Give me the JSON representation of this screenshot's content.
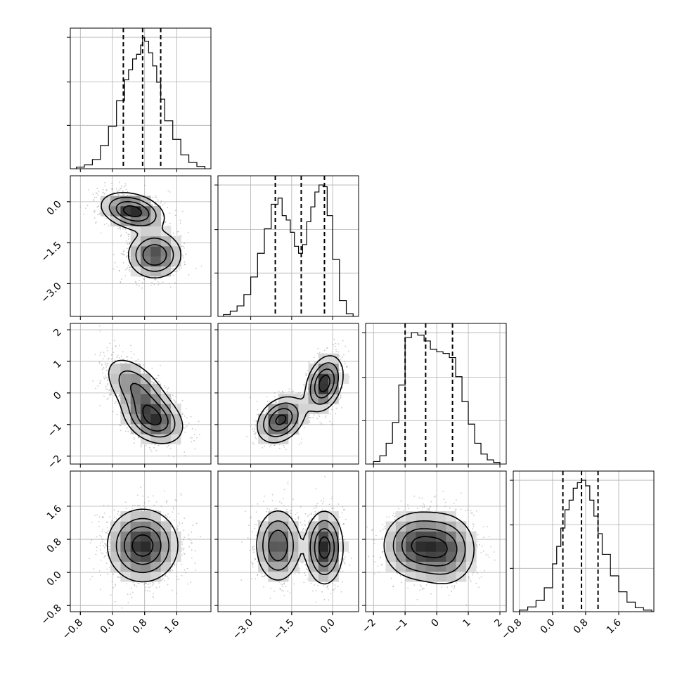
{
  "colors": {
    "ink": "#000000",
    "grid": "#b0b0b0",
    "scatter": "#8a8a8a",
    "background": "#ffffff"
  },
  "chart_data": {
    "type": "corner",
    "title": "",
    "grid": true,
    "parameters": [
      {
        "ticks": [
          -0.8,
          0.0,
          0.8,
          1.6
        ],
        "tick_labels": [
          "−0.8",
          "0.0",
          "0.8",
          "1.6"
        ],
        "range": [
          -1.05,
          2.45
        ]
      },
      {
        "ticks": [
          -3.0,
          -1.5,
          0.0
        ],
        "tick_labels": [
          "−3.0",
          "−1.5",
          "0.0"
        ],
        "range": [
          -4.2,
          0.95
        ]
      },
      {
        "ticks": [
          -2,
          -1,
          0,
          1,
          2
        ],
        "tick_labels": [
          "−2",
          "−1",
          "0",
          "1",
          "2"
        ],
        "range": [
          -2.25,
          2.2
        ]
      },
      {
        "ticks": [
          -0.8,
          0.0,
          0.8,
          1.6
        ],
        "tick_labels": [
          "−0.8",
          "0.0",
          "0.8",
          "1.6"
        ],
        "range": [
          -0.95,
          2.45
        ]
      }
    ],
    "histograms": [
      {
        "param": 0,
        "quantiles": [
          0.27,
          0.75,
          1.2
        ],
        "bin_edges": [
          -0.9,
          -0.7,
          -0.5,
          -0.3,
          -0.1,
          0.1,
          0.3,
          0.4,
          0.5,
          0.6,
          0.7,
          0.75,
          0.8,
          0.9,
          1.0,
          1.1,
          1.2,
          1.3,
          1.5,
          1.7,
          1.9,
          2.1,
          2.3
        ],
        "counts": [
          2,
          5,
          12,
          30,
          55,
          88,
          115,
          128,
          142,
          148,
          160,
          170,
          165,
          150,
          133,
          112,
          90,
          62,
          38,
          18,
          8,
          3
        ]
      },
      {
        "param": 1,
        "quantiles": [
          -2.1,
          -1.15,
          -0.3
        ],
        "bin_edges": [
          -4.0,
          -3.75,
          -3.5,
          -3.25,
          -3.0,
          -2.75,
          -2.5,
          -2.25,
          -2.0,
          -1.85,
          -1.7,
          -1.55,
          -1.4,
          -1.25,
          -1.1,
          -0.95,
          -0.8,
          -0.65,
          -0.5,
          -0.35,
          -0.2,
          0.0,
          0.25,
          0.5,
          0.75
        ],
        "counts": [
          2,
          6,
          12,
          25,
          45,
          72,
          100,
          128,
          135,
          115,
          110,
          96,
          80,
          72,
          82,
          108,
          125,
          142,
          150,
          148,
          115,
          65,
          18,
          3
        ]
      },
      {
        "param": 2,
        "quantiles": [
          -1.0,
          -0.35,
          0.5
        ],
        "bin_edges": [
          -2.0,
          -1.8,
          -1.6,
          -1.4,
          -1.2,
          -1.0,
          -0.8,
          -0.6,
          -0.4,
          -0.2,
          0.0,
          0.2,
          0.4,
          0.6,
          0.8,
          1.0,
          1.2,
          1.4,
          1.6,
          1.8,
          2.0
        ],
        "counts": [
          3,
          10,
          25,
          50,
          95,
          152,
          158,
          155,
          148,
          138,
          135,
          133,
          128,
          105,
          75,
          48,
          25,
          12,
          5,
          2
        ]
      },
      {
        "param": 3,
        "quantiles": [
          0.25,
          0.7,
          1.1
        ],
        "bin_edges": [
          -0.8,
          -0.6,
          -0.4,
          -0.2,
          0.0,
          0.1,
          0.2,
          0.3,
          0.4,
          0.5,
          0.6,
          0.7,
          0.8,
          0.9,
          1.0,
          1.1,
          1.2,
          1.4,
          1.6,
          1.8,
          2.0,
          2.2,
          2.4
        ],
        "counts": [
          2,
          6,
          14,
          30,
          60,
          82,
          105,
          128,
          140,
          155,
          162,
          165,
          158,
          140,
          120,
          98,
          72,
          45,
          25,
          12,
          5,
          2
        ]
      }
    ],
    "joint_panels": [
      {
        "x_param": 0,
        "y_param": 1,
        "modes": [
          {
            "x": 0.5,
            "y": -0.35,
            "sx": 0.4,
            "sy": 0.35,
            "rho": -0.3,
            "w": 0.5
          },
          {
            "x": 1.05,
            "y": -1.95,
            "sx": 0.35,
            "sy": 0.45,
            "rho": 0.0,
            "w": 0.5
          }
        ]
      },
      {
        "x_param": 0,
        "y_param": 2,
        "modes": [
          {
            "x": 0.62,
            "y": 0.1,
            "sx": 0.42,
            "sy": 0.55,
            "rho": -0.55,
            "w": 0.5
          },
          {
            "x": 1.02,
            "y": -0.85,
            "sx": 0.38,
            "sy": 0.4,
            "rho": -0.3,
            "w": 0.5
          }
        ]
      },
      {
        "x_param": 1,
        "y_param": 2,
        "modes": [
          {
            "x": -1.9,
            "y": -0.85,
            "sx": 0.45,
            "sy": 0.38,
            "rho": 0.3,
            "w": 0.5
          },
          {
            "x": -0.3,
            "y": 0.3,
            "sx": 0.35,
            "sy": 0.45,
            "rho": 0.3,
            "w": 0.5
          }
        ]
      },
      {
        "x_param": 0,
        "y_param": 3,
        "modes": [
          {
            "x": 0.75,
            "y": 0.65,
            "sx": 0.45,
            "sy": 0.45,
            "rho": 0.0,
            "w": 1.0
          }
        ]
      },
      {
        "x_param": 1,
        "y_param": 3,
        "modes": [
          {
            "x": -2.0,
            "y": 0.65,
            "sx": 0.42,
            "sy": 0.45,
            "rho": 0.0,
            "w": 0.5
          },
          {
            "x": -0.3,
            "y": 0.6,
            "sx": 0.35,
            "sy": 0.45,
            "rho": 0.0,
            "w": 0.5
          }
        ]
      },
      {
        "x_param": 2,
        "y_param": 3,
        "modes": [
          {
            "x": -0.65,
            "y": 0.65,
            "sx": 0.55,
            "sy": 0.42,
            "rho": 0.0,
            "w": 0.55
          },
          {
            "x": 0.3,
            "y": 0.55,
            "sx": 0.5,
            "sy": 0.45,
            "rho": 0.0,
            "w": 0.45
          }
        ]
      }
    ],
    "contour_levels": [
      0.15,
      0.35,
      0.6,
      0.85
    ]
  }
}
